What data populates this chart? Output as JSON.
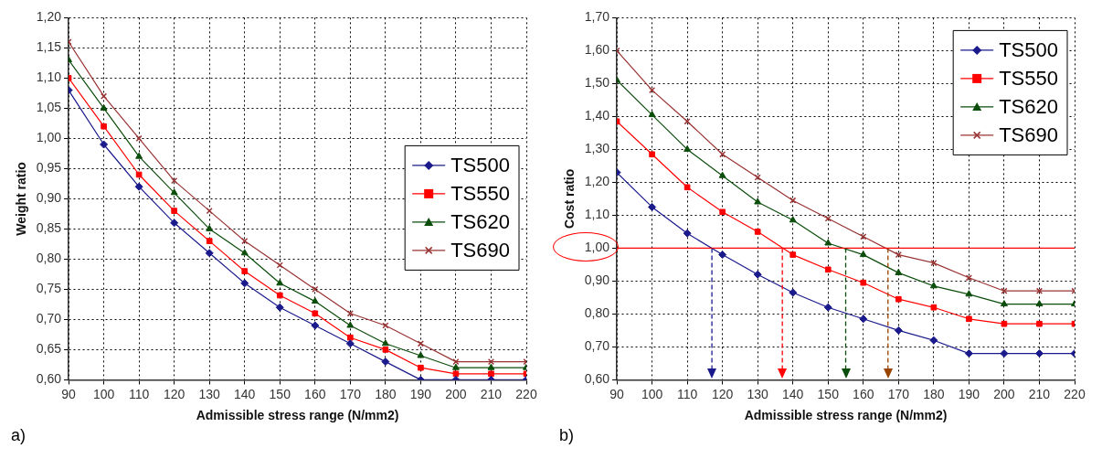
{
  "chart_data": [
    {
      "type": "line",
      "xlabel": "Admissible stress range (N/mm2)",
      "ylabel": "Weight ratio",
      "annotations": [
        "a)"
      ],
      "x": [
        90,
        100,
        110,
        120,
        130,
        140,
        150,
        160,
        170,
        180,
        190,
        200,
        210,
        220
      ],
      "series": [
        {
          "name": "TS500",
          "color": "#1a1a8c",
          "marker": "diamond",
          "values": [
            1.08,
            0.99,
            0.92,
            0.86,
            0.81,
            0.76,
            0.72,
            0.69,
            0.66,
            0.63,
            0.6,
            0.6,
            0.6,
            0.6
          ]
        },
        {
          "name": "TS550",
          "color": "#ff0000",
          "marker": "square",
          "values": [
            1.1,
            1.02,
            0.94,
            0.88,
            0.83,
            0.78,
            0.74,
            0.71,
            0.67,
            0.65,
            0.62,
            0.61,
            0.61,
            0.61
          ]
        },
        {
          "name": "TS620",
          "color": "#0b4d0b",
          "marker": "triangle",
          "values": [
            1.13,
            1.05,
            0.97,
            0.91,
            0.85,
            0.81,
            0.76,
            0.73,
            0.69,
            0.66,
            0.64,
            0.62,
            0.62,
            0.62
          ]
        },
        {
          "name": "TS690",
          "color": "#993333",
          "marker": "cross",
          "values": [
            1.16,
            1.07,
            1.0,
            0.93,
            0.88,
            0.83,
            0.79,
            0.75,
            0.71,
            0.69,
            0.66,
            0.63,
            0.63,
            0.63
          ]
        }
      ],
      "xlim": [
        90,
        220
      ],
      "xticks": [
        90,
        100,
        110,
        120,
        130,
        140,
        150,
        160,
        170,
        180,
        190,
        200,
        210,
        220
      ],
      "ylim": [
        0.6,
        1.2
      ],
      "yticks": [
        {
          "value": 0.6,
          "label": "0,60"
        },
        {
          "value": 0.65,
          "label": "0,65"
        },
        {
          "value": 0.7,
          "label": "0,70"
        },
        {
          "value": 0.75,
          "label": "0,75"
        },
        {
          "value": 0.8,
          "label": "0,80"
        },
        {
          "value": 0.85,
          "label": "0,85"
        },
        {
          "value": 0.9,
          "label": "0,90"
        },
        {
          "value": 0.95,
          "label": "0,95"
        },
        {
          "value": 1.0,
          "label": "1,00"
        },
        {
          "value": 1.05,
          "label": "1,05"
        },
        {
          "value": 1.1,
          "label": "1,10"
        },
        {
          "value": 1.15,
          "label": "1,15"
        },
        {
          "value": 1.2,
          "label": "1,20"
        }
      ],
      "grid": true,
      "legend": "right"
    },
    {
      "type": "line",
      "xlabel": "Admissible stress range (N/mm2)",
      "ylabel": "Cost ratio",
      "annotations": [
        "b)"
      ],
      "x": [
        90,
        100,
        110,
        120,
        130,
        140,
        150,
        160,
        170,
        180,
        190,
        200,
        210,
        220
      ],
      "series": [
        {
          "name": "TS500",
          "color": "#1a1a8c",
          "marker": "diamond",
          "values": [
            1.23,
            1.125,
            1.045,
            0.98,
            0.92,
            0.865,
            0.82,
            0.785,
            0.75,
            0.72,
            0.68,
            0.68,
            0.68,
            0.68
          ]
        },
        {
          "name": "TS550",
          "color": "#ff0000",
          "marker": "square",
          "values": [
            1.385,
            1.285,
            1.185,
            1.11,
            1.05,
            0.98,
            0.935,
            0.895,
            0.845,
            0.82,
            0.785,
            0.77,
            0.77,
            0.77
          ]
        },
        {
          "name": "TS620",
          "color": "#0b4d0b",
          "marker": "triangle",
          "values": [
            1.51,
            1.405,
            1.3,
            1.22,
            1.14,
            1.085,
            1.015,
            0.98,
            0.925,
            0.885,
            0.86,
            0.83,
            0.83,
            0.83
          ]
        },
        {
          "name": "TS690",
          "color": "#993333",
          "marker": "cross",
          "values": [
            1.6,
            1.48,
            1.385,
            1.285,
            1.215,
            1.145,
            1.09,
            1.035,
            0.98,
            0.955,
            0.91,
            0.87,
            0.87,
            0.87
          ]
        }
      ],
      "ref_lines": [
        {
          "axis": "y",
          "value": 1.0,
          "color": "#ff0000",
          "line_style": "solid"
        },
        {
          "axis": "x",
          "value": 117,
          "color": "#1a1a8c",
          "line_style": "dashed"
        },
        {
          "axis": "x",
          "value": 137,
          "color": "#ff0000",
          "line_style": "dashed"
        },
        {
          "axis": "x",
          "value": 155,
          "color": "#0b4d0b",
          "line_style": "dashed"
        },
        {
          "axis": "x",
          "value": 167,
          "color": "#994400",
          "line_style": "dashed"
        }
      ],
      "xlim": [
        90,
        220
      ],
      "xticks": [
        90,
        100,
        110,
        120,
        130,
        140,
        150,
        160,
        170,
        180,
        190,
        200,
        210,
        220
      ],
      "ylim": [
        0.6,
        1.7
      ],
      "yticks": [
        {
          "value": 0.6,
          "label": "0,60"
        },
        {
          "value": 0.7,
          "label": "0,70"
        },
        {
          "value": 0.8,
          "label": "0,80"
        },
        {
          "value": 0.9,
          "label": "0,90"
        },
        {
          "value": 1.0,
          "label": "1,00"
        },
        {
          "value": 1.1,
          "label": "1,10"
        },
        {
          "value": 1.2,
          "label": "1,20"
        },
        {
          "value": 1.3,
          "label": "1,30"
        },
        {
          "value": 1.4,
          "label": "1,40"
        },
        {
          "value": 1.5,
          "label": "1,50"
        },
        {
          "value": 1.6,
          "label": "1,60"
        },
        {
          "value": 1.7,
          "label": "1,70"
        }
      ],
      "grid": true,
      "legend": "top right"
    }
  ]
}
